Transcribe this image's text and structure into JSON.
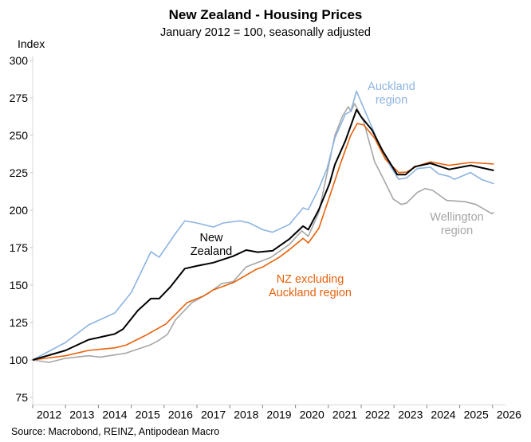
{
  "chart_data": {
    "type": "line",
    "title": "New Zealand - Housing Prices",
    "subtitle": "January 2012 = 100, seasonally adjusted",
    "ylabel": "Index",
    "xlabel": "",
    "ylim": [
      70,
      300
    ],
    "yticks": [
      75,
      100,
      125,
      150,
      175,
      200,
      225,
      250,
      275,
      300
    ],
    "xlim": [
      2012,
      2026.1
    ],
    "xtick_labels": [
      "2012",
      "2013",
      "2014",
      "2015",
      "2016",
      "2017",
      "2018",
      "2019",
      "2020",
      "2021",
      "2022",
      "2023",
      "2024",
      "2025",
      "2026"
    ],
    "grid": false,
    "source": "Source: Macrobond, REINZ, Antipodean Macro",
    "series": [
      {
        "name": "Auckland region",
        "color": "#8db4e2",
        "x": [
          2012.0,
          2013.0,
          2013.7,
          2014.5,
          2015.0,
          2015.6,
          2015.85,
          2016.35,
          2016.63,
          2017.0,
          2017.5,
          2017.8,
          2018.3,
          2018.6,
          2019.0,
          2019.3,
          2019.82,
          2020.23,
          2020.39,
          2020.71,
          2020.96,
          2021.2,
          2021.52,
          2021.68,
          2021.86,
          2022.0,
          2022.33,
          2022.66,
          2023.14,
          2023.38,
          2023.71,
          2024.11,
          2024.35,
          2024.68,
          2024.84,
          2025.33,
          2025.65,
          2026.04
        ],
        "y": [
          100,
          111.7,
          123.4,
          131.4,
          145,
          172.3,
          168.6,
          184.6,
          192.9,
          191.5,
          188.8,
          191.5,
          192.9,
          191.5,
          187,
          185.3,
          190.6,
          201.6,
          200.4,
          214.5,
          227.8,
          248.2,
          264.2,
          266,
          279.5,
          272.2,
          255.3,
          237.6,
          220.7,
          221.6,
          227.8,
          228.7,
          224.3,
          222.6,
          220.7,
          225.2,
          220.7,
          217.7
        ]
      },
      {
        "name": "New Zealand",
        "color": "#000000",
        "x": [
          2012.0,
          2013.0,
          2013.7,
          2014.5,
          2014.75,
          2015.2,
          2015.6,
          2015.85,
          2016.2,
          2016.63,
          2017.0,
          2017.5,
          2018.1,
          2018.5,
          2018.85,
          2019.3,
          2019.82,
          2020.23,
          2020.39,
          2020.71,
          2021.04,
          2021.2,
          2021.52,
          2021.86,
          2022.0,
          2022.33,
          2022.66,
          2023.1,
          2023.35,
          2023.63,
          2024.11,
          2024.68,
          2025.33,
          2026.04
        ],
        "y": [
          100,
          106.4,
          113.5,
          117.4,
          120.6,
          133,
          141,
          141,
          149,
          161,
          162.8,
          165,
          169.3,
          173.4,
          172,
          172.9,
          180.9,
          189.4,
          187,
          200.4,
          218,
          230.5,
          246.4,
          267.2,
          262.4,
          253.6,
          239.4,
          223.8,
          223.8,
          229.1,
          231.4,
          227.3,
          230,
          226.6
        ]
      },
      {
        "name": "NZ excluding Auckland region",
        "color": "#e8620c",
        "x": [
          2012.0,
          2013.0,
          2013.7,
          2014.5,
          2014.84,
          2015.4,
          2016.05,
          2016.7,
          2017.2,
          2017.5,
          2018.1,
          2018.8,
          2019.01,
          2019.5,
          2019.82,
          2020.23,
          2020.39,
          2020.71,
          2021.04,
          2021.36,
          2021.68,
          2021.88,
          2022.08,
          2022.41,
          2022.74,
          2023.14,
          2023.38,
          2023.71,
          2024.11,
          2024.68,
          2025.33,
          2026.04
        ],
        "y": [
          100,
          102.8,
          106.4,
          108.1,
          109.9,
          116,
          124,
          138.3,
          142.7,
          146.8,
          151.6,
          160.5,
          162.2,
          168.5,
          173.8,
          181.2,
          178.2,
          188,
          209.2,
          230.5,
          250,
          258,
          256.9,
          248.2,
          234,
          225.2,
          225.5,
          229.6,
          232.3,
          230,
          231.9,
          230.9
        ]
      },
      {
        "name": "Wellington region",
        "color": "#a6a6a6",
        "x": [
          2012.0,
          2012.5,
          2013.0,
          2013.7,
          2014.05,
          2014.84,
          2015.56,
          2015.8,
          2016.1,
          2016.35,
          2016.85,
          2017.35,
          2017.75,
          2018.1,
          2018.5,
          2019.25,
          2019.82,
          2020.19,
          2020.39,
          2020.71,
          2021.0,
          2021.2,
          2021.44,
          2021.61,
          2021.69,
          2021.8,
          2022.08,
          2022.41,
          2022.66,
          2022.98,
          2023.22,
          2023.38,
          2023.71,
          2023.95,
          2024.19,
          2024.6,
          2025.16,
          2025.49,
          2025.98,
          2026.04
        ],
        "y": [
          100,
          98.4,
          101.1,
          102.8,
          101.9,
          104.6,
          109.9,
          112.6,
          117,
          126.8,
          138.3,
          144.5,
          151,
          152.3,
          162.2,
          168.5,
          177.3,
          186.2,
          182.6,
          198.6,
          228.7,
          250,
          263.3,
          269.1,
          266,
          271.3,
          258.9,
          232.3,
          221.6,
          207.4,
          203.9,
          204.8,
          211.9,
          214.5,
          213.1,
          206.6,
          205.7,
          203.9,
          197.7,
          198.6
        ]
      }
    ],
    "annotations": [
      {
        "series": "Auckland region",
        "lines": [
          "Auckland",
          "region"
        ]
      },
      {
        "series": "New Zealand",
        "lines": [
          "New",
          "Zealand"
        ]
      },
      {
        "series": "NZ excluding Auckland region",
        "lines": [
          "NZ excluding",
          "Auckland region"
        ]
      },
      {
        "series": "Wellington region",
        "lines": [
          "Wellington",
          "region"
        ]
      }
    ]
  }
}
